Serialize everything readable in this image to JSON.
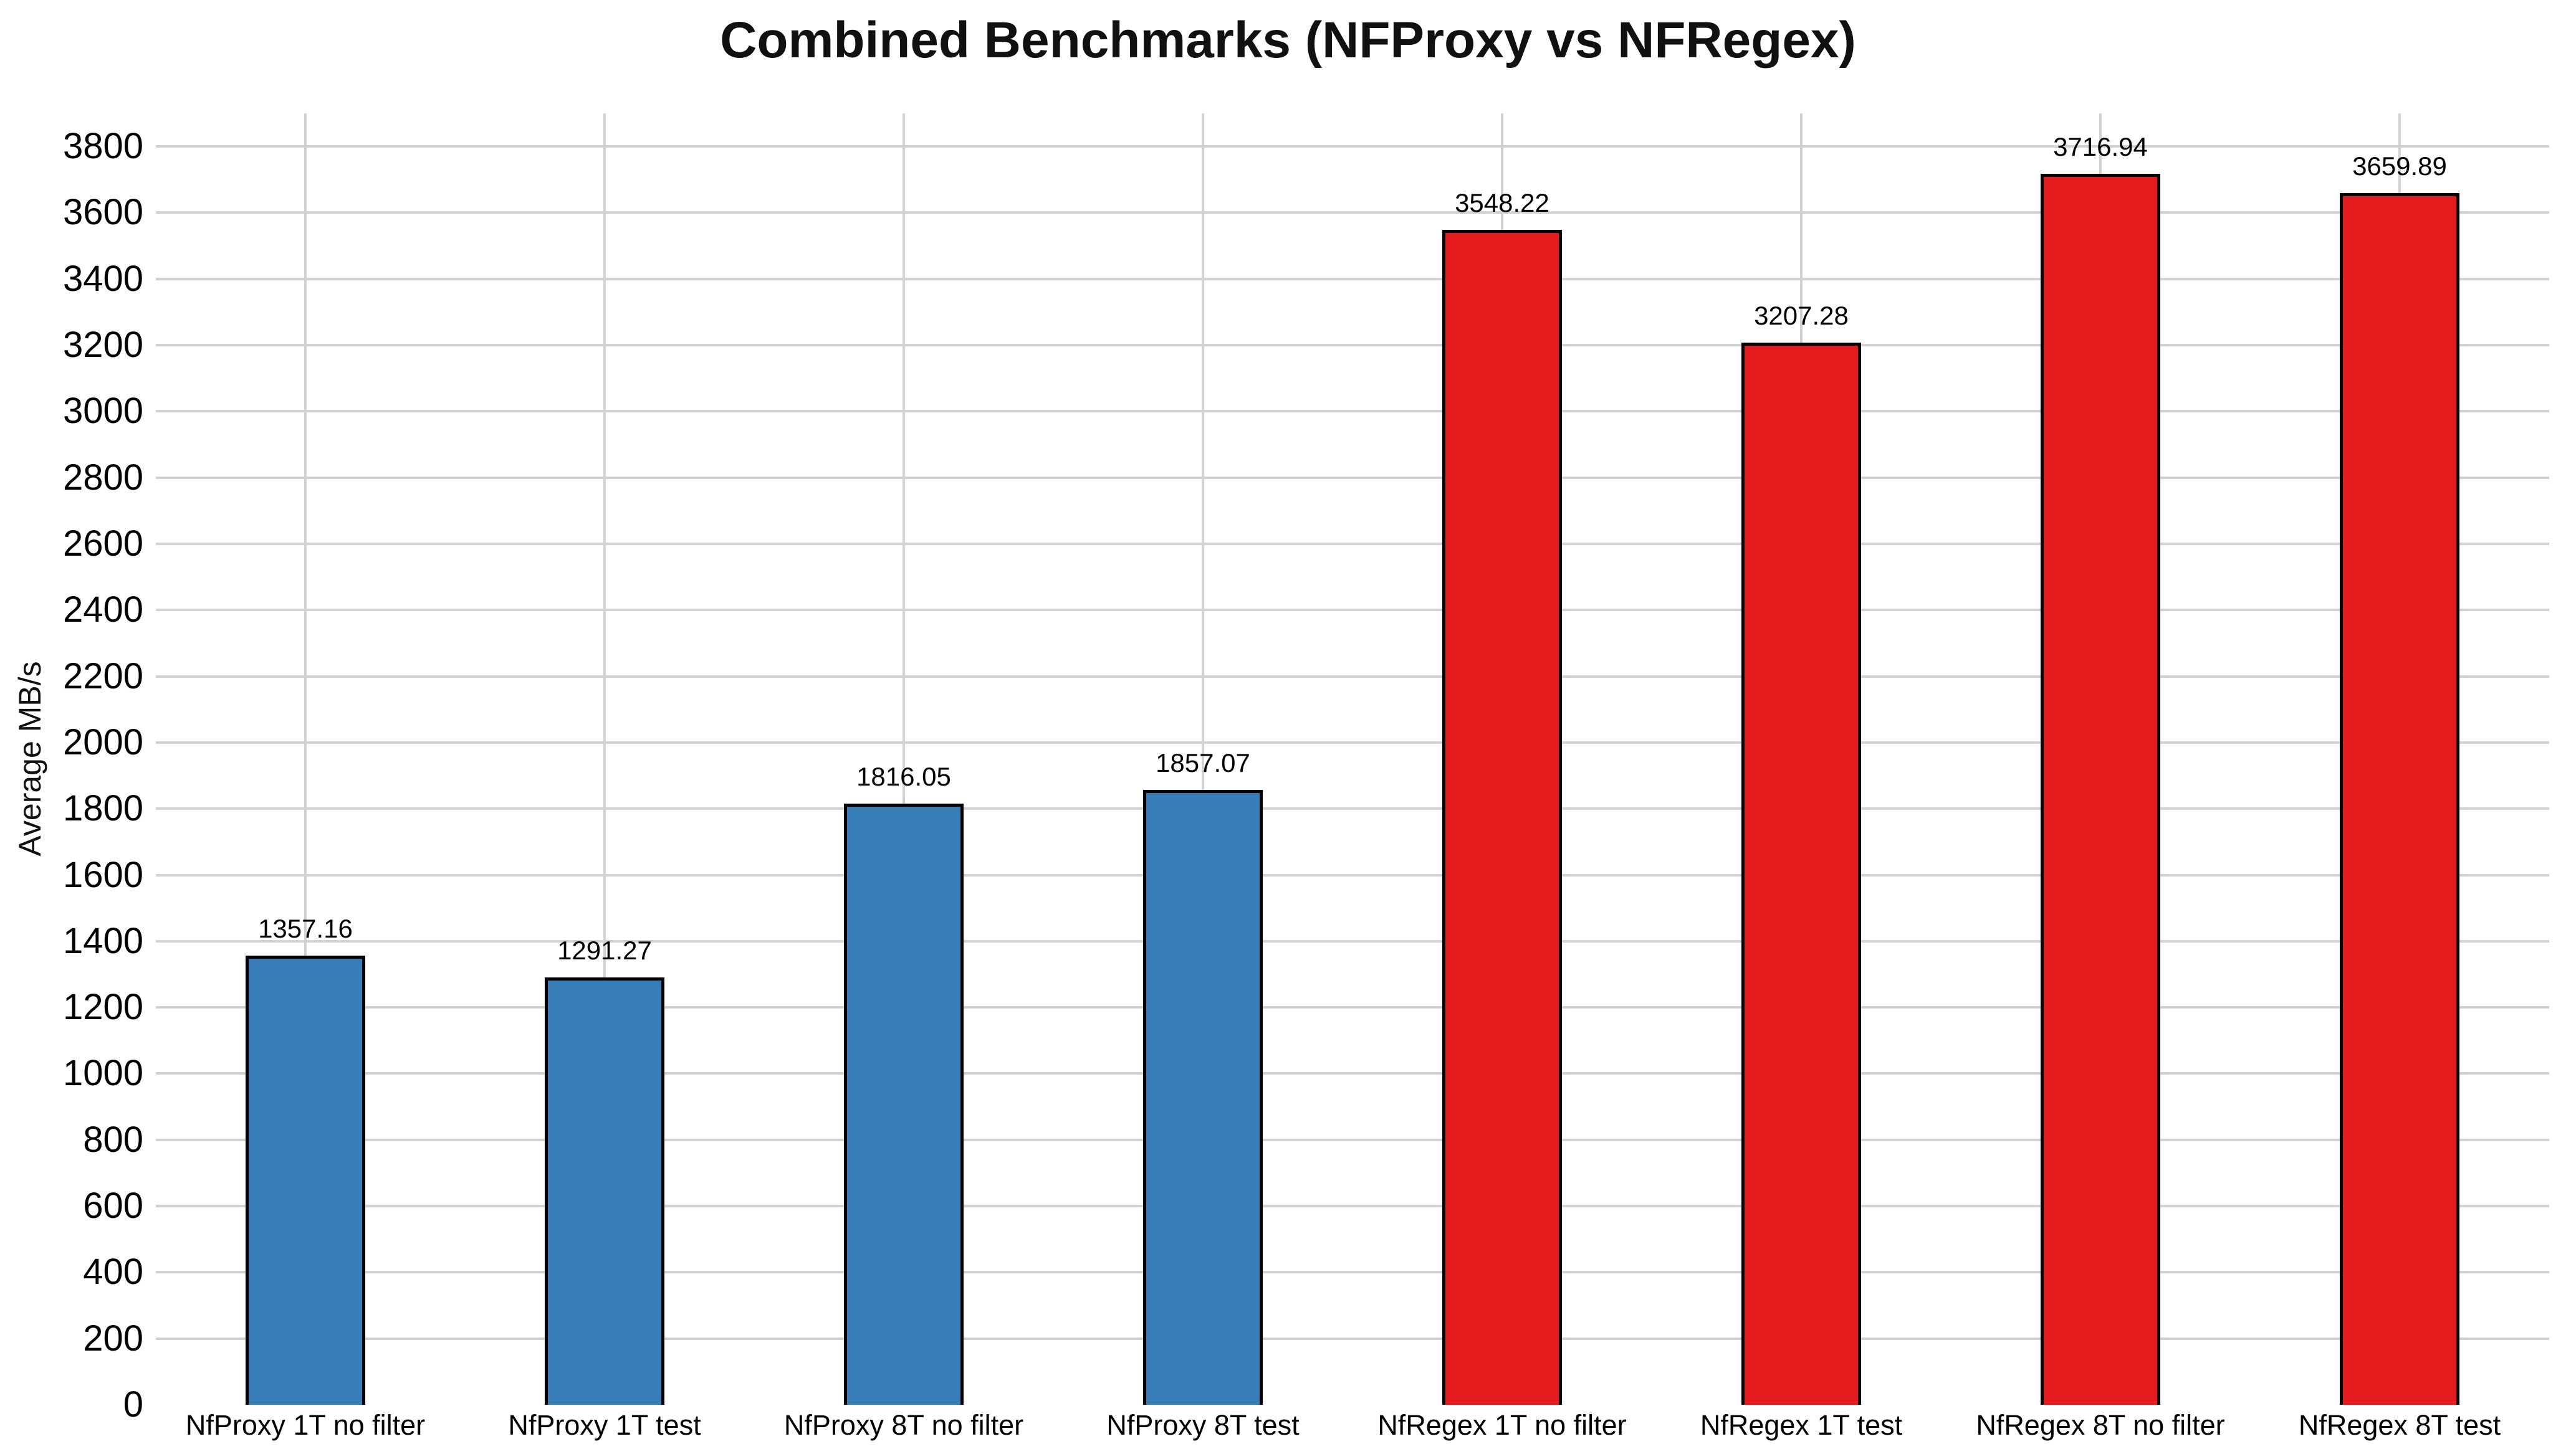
{
  "chart_data": {
    "type": "bar",
    "title": "Combined Benchmarks (NFProxy vs NFRegex)",
    "xlabel": "",
    "ylabel": "Average MB/s",
    "categories": [
      "NfProxy 1T no filter",
      "NfProxy 1T test",
      "NfProxy 8T no filter",
      "NfProxy 8T test",
      "NfRegex 1T no filter",
      "NfRegex 1T test",
      "NfRegex 8T no filter",
      "NfRegex 8T test"
    ],
    "values": [
      1357.16,
      1291.27,
      1816.05,
      1857.07,
      3548.22,
      3207.28,
      3716.94,
      3659.89
    ],
    "value_labels": [
      "1357.16",
      "1291.27",
      "1816.05",
      "1857.07",
      "3548.22",
      "3207.28",
      "3716.94",
      "3659.89"
    ],
    "bar_colors": [
      "#377eb8",
      "#377eb8",
      "#377eb8",
      "#377eb8",
      "#e41a1c",
      "#e41a1c",
      "#e41a1c",
      "#e41a1c"
    ],
    "groups": [
      {
        "name": "NFProxy",
        "color": "#377eb8"
      },
      {
        "name": "NFRegex",
        "color": "#e41a1c"
      }
    ],
    "bar_edge_color": "#000000",
    "gridline_color": "#d2d2d2",
    "grid": "horizontal lines at y ticks, vertical lines at category centers, no zero line, no axis spines",
    "legend": "none",
    "ylim": [
      0,
      3900
    ],
    "yticks": [
      0,
      200,
      400,
      600,
      800,
      1000,
      1200,
      1400,
      1600,
      1800,
      2000,
      2200,
      2400,
      2600,
      2800,
      3000,
      3200,
      3400,
      3600,
      3800
    ]
  }
}
